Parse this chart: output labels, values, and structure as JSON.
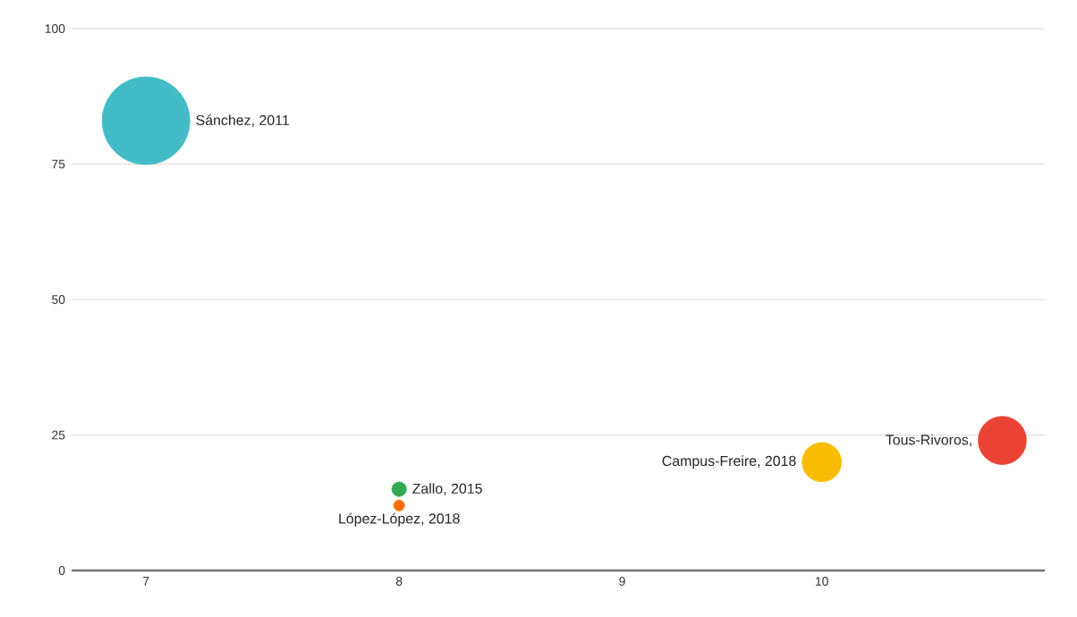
{
  "chart_data": {
    "type": "bubble",
    "log": "x",
    "grid": "y",
    "xlim": [
      6.73,
      11.25
    ],
    "xticks": [
      7,
      8,
      9,
      10
    ],
    "ylim": [
      0,
      100
    ],
    "yticks": [
      0,
      25,
      50,
      75,
      100
    ],
    "series": [
      {
        "name": "Sánchez, 2011",
        "color": "#44bcc7",
        "x": [
          7
        ],
        "values": [
          83
        ],
        "sizes": [
          1
        ]
      },
      {
        "name": "Zallo, 2015",
        "color": "#34a853",
        "x": [
          8
        ],
        "values": [
          15
        ],
        "sizes": [
          0.027
        ]
      },
      {
        "name": "López-López, 2018",
        "color": "#ff6d01",
        "x": [
          8
        ],
        "values": [
          12
        ],
        "sizes": [
          0.015
        ]
      },
      {
        "name": "Campus-Freire, 2018",
        "color": "#fbbc04",
        "x": [
          10
        ],
        "values": [
          20
        ],
        "sizes": [
          0.2
        ]
      },
      {
        "name": "Tous-Rivoros,",
        "color": "#ea4335",
        "x": [
          11
        ],
        "values": [
          24
        ],
        "sizes": [
          0.3
        ]
      }
    ]
  }
}
